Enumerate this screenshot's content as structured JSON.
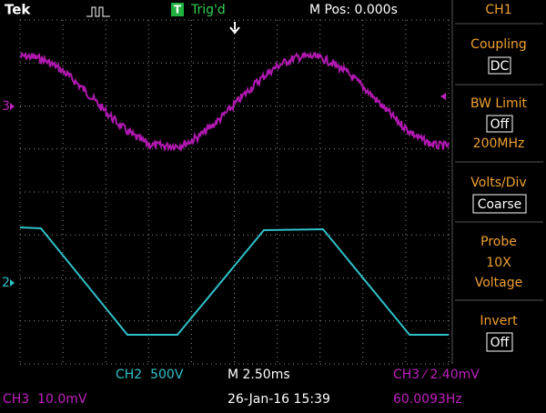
{
  "header": {
    "brand": "Tek",
    "trigger_badge": "T",
    "trigger_status": "Trig'd",
    "position": "M Pos: 0.000s"
  },
  "menu": {
    "title": "CH1",
    "items": [
      {
        "label": "Coupling",
        "value": "DC"
      },
      {
        "label": "BW Limit",
        "value": "Off",
        "extra": "200MHz"
      },
      {
        "label": "Volts/Div",
        "value": "Coarse"
      },
      {
        "label": "Probe",
        "lines": [
          "10X",
          "Voltage"
        ]
      },
      {
        "label": "Invert",
        "value": "Off"
      }
    ]
  },
  "markers": {
    "ch3": "3",
    "ch2": "2"
  },
  "footer": {
    "ch2_scale": "CH2  500V",
    "timebase": "M 2.50ms",
    "trigger": "CH3 ⁄ 2.40mV",
    "ch3_scale": "CH3  10.0mV",
    "date": "26-Jan-16 15:39",
    "frequency": "60.0093Hz"
  }
}
